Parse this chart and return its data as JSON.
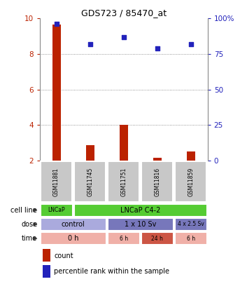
{
  "title": "GDS723 / 85470_at",
  "samples": [
    "GSM11881",
    "GSM11745",
    "GSM11751",
    "GSM11816",
    "GSM11859"
  ],
  "bar_values": [
    9.65,
    2.85,
    4.0,
    2.15,
    2.5
  ],
  "scatter_values": [
    96,
    82,
    87,
    79,
    82
  ],
  "bar_color": "#bb2200",
  "scatter_color": "#2222bb",
  "ylim_left": [
    2,
    10
  ],
  "ylim_right": [
    0,
    100
  ],
  "yticks_left": [
    2,
    4,
    6,
    8,
    10
  ],
  "yticks_right": [
    0,
    25,
    50,
    75,
    100
  ],
  "yticklabels_right": [
    "0",
    "25",
    "50",
    "75",
    "100%"
  ],
  "cell_line_labels": [
    "LNCaP",
    "LNCaP C4-2"
  ],
  "cell_line_colors": [
    "#55cc33",
    "#55cc33"
  ],
  "dose_labels": [
    "control",
    "1 x 10 Sv",
    "4 x 2.5 Sv"
  ],
  "dose_color": "#aaaadd",
  "dose_color2": "#7777bb",
  "time_labels": [
    "0 h",
    "6 h",
    "24 h",
    "6 h"
  ],
  "time_colors": [
    "#f0b0a8",
    "#f0b0a8",
    "#cc5544",
    "#f0b0a8"
  ],
  "legend_count_label": "count",
  "legend_pct_label": "percentile rank within the sample",
  "sample_box_color": "#c8c8c8",
  "grid_color": "#777777"
}
